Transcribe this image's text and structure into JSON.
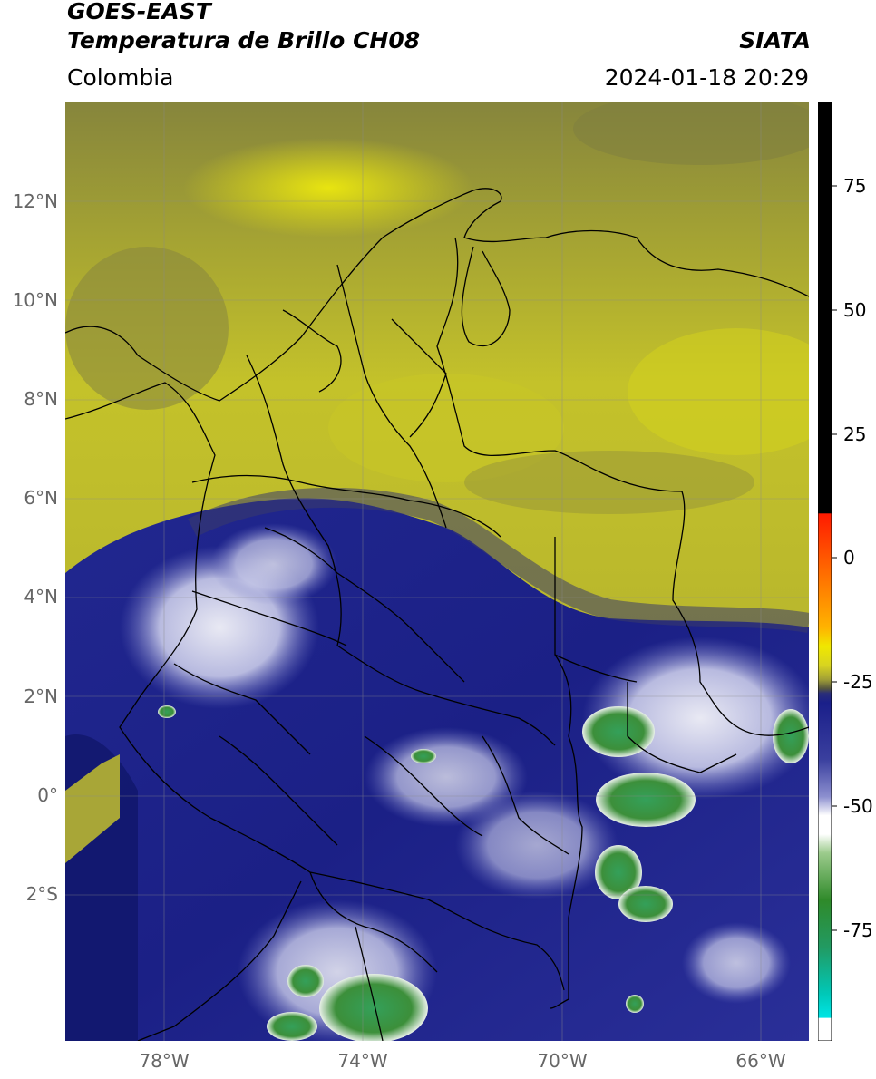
{
  "header": {
    "title_line1": "GOES-EAST",
    "title_line2": "Temperatura de Brillo CH08",
    "region": "Colombia",
    "source": "SIATA",
    "datetime": "2024-01-18 20:29"
  },
  "map": {
    "lat_labels": [
      "12°N",
      "10°N",
      "8°N",
      "6°N",
      "4°N",
      "2°N",
      "0°",
      "2°S"
    ],
    "lon_labels": [
      "78°W",
      "74°W",
      "70°W",
      "66°W"
    ]
  },
  "colorbar": {
    "tick_labels": [
      "75",
      "50",
      "25",
      "0",
      "-25",
      "-50",
      "-75"
    ],
    "colors": {
      "black": "#000000",
      "red": "#ff1a00",
      "orange": "#ff9a00",
      "yellow": "#e8e410",
      "olive": "#6b6a3a",
      "navy": "#1a1f8a",
      "light_blue": "#8c8fcf",
      "white": "#ffffff",
      "green": "#2f8a2a",
      "cyan": "#00e5e5"
    }
  }
}
